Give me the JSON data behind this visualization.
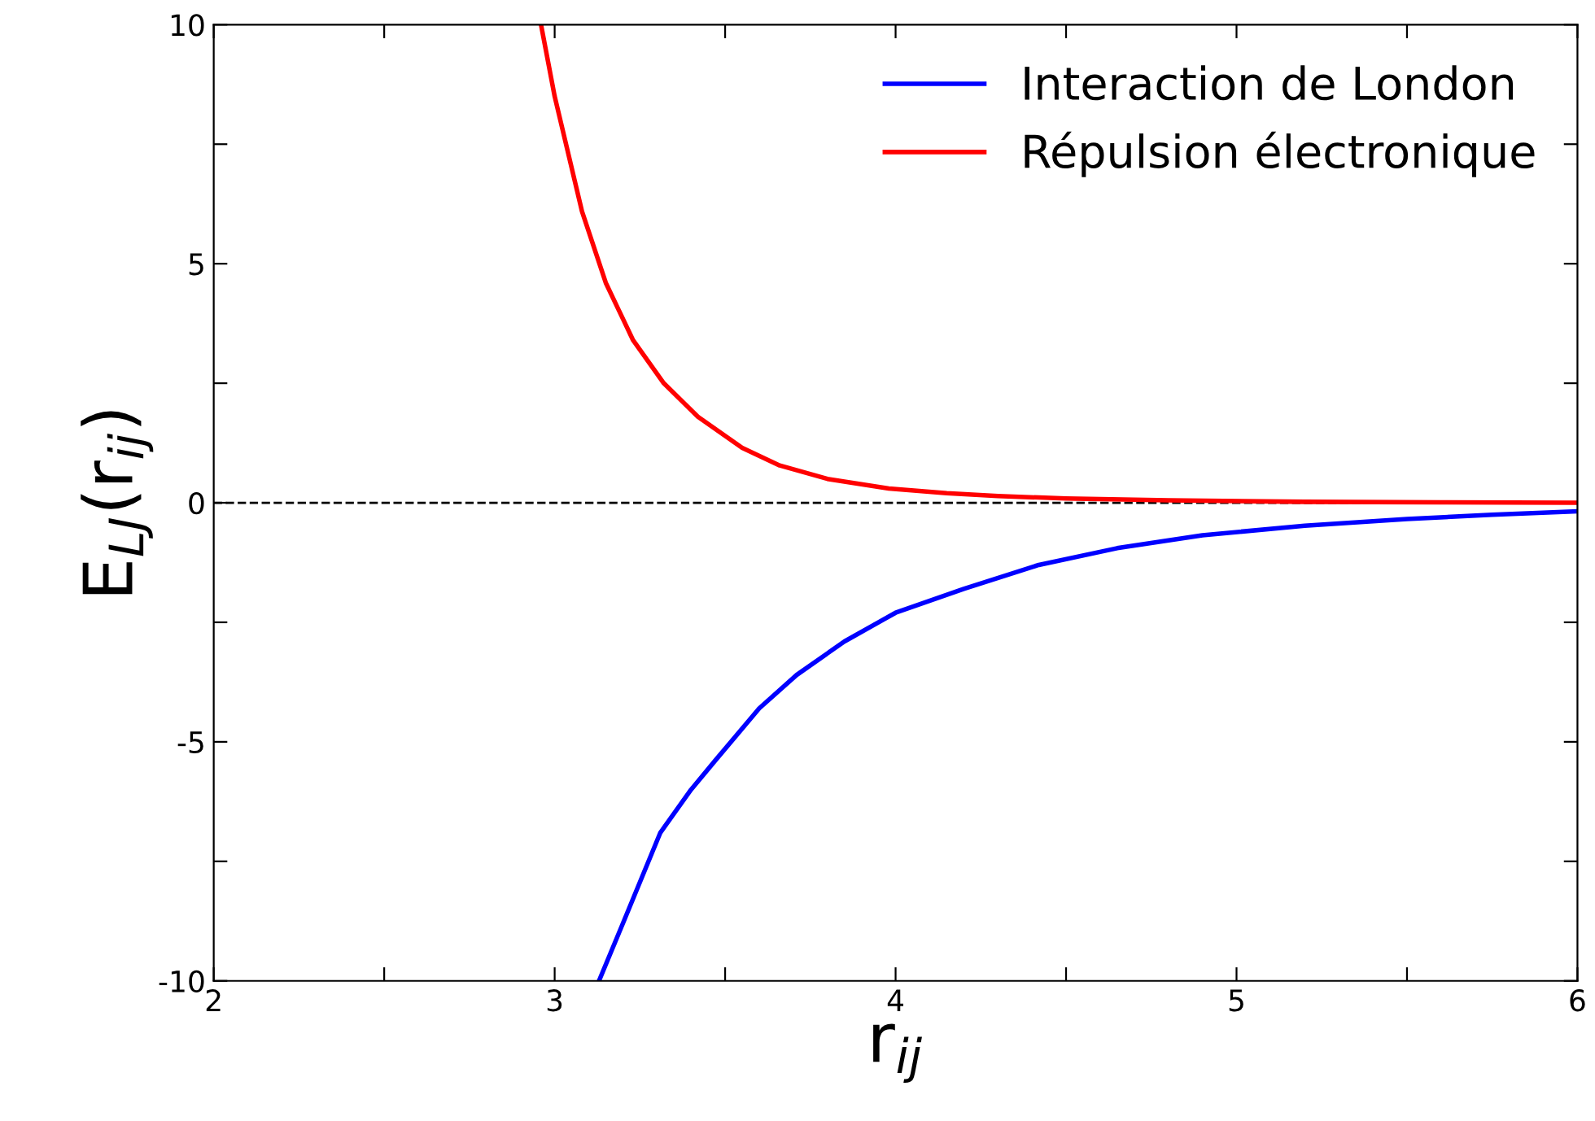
{
  "chart_data": {
    "type": "line",
    "xlabel": "r$_{ij}$",
    "ylabel": "E$_{LJ}$(r$_{ij}$)",
    "xlim": [
      2,
      6
    ],
    "ylim": [
      -10,
      10
    ],
    "xticks": [
      2,
      {
        "value": 2.5,
        "label": null
      },
      3,
      {
        "value": 3.5,
        "label": null
      },
      4,
      {
        "value": 4.5,
        "label": null
      },
      5,
      {
        "value": 5.5,
        "label": null
      },
      6
    ],
    "yticks": [
      -10,
      {
        "value": -7.5,
        "label": null
      },
      -5,
      {
        "value": -2.5,
        "label": null
      },
      0,
      {
        "value": 2.5,
        "label": null
      },
      5,
      {
        "value": 7.5,
        "label": null
      },
      10
    ],
    "grid": false,
    "legend": "top right",
    "marker": "none",
    "line_style": "solid",
    "ref_lines": [
      {
        "axis": "y",
        "value": 0,
        "color": "#000000",
        "line_style": "dashed"
      }
    ],
    "series": [
      {
        "name": "Interaction de London",
        "color": "#0000ff",
        "x": [
          3.13,
          3.2,
          3.31,
          3.4,
          3.47,
          3.6,
          3.71,
          3.85,
          4.0,
          4.2,
          4.42,
          4.65,
          4.9,
          5.2,
          5.5,
          5.75,
          6.0
        ],
        "values": [
          -10,
          -8.8,
          -6.9,
          -6.0,
          -5.4,
          -4.3,
          -3.6,
          -2.9,
          -2.3,
          -1.8,
          -1.3,
          -0.95,
          -0.68,
          -0.48,
          -0.34,
          -0.25,
          -0.18
        ]
      },
      {
        "name": "Répulsion électronique",
        "color": "#ff0000",
        "x": [
          2.96,
          3.0,
          3.08,
          3.15,
          3.23,
          3.32,
          3.42,
          3.55,
          3.66,
          3.8,
          3.98,
          4.15,
          4.3,
          4.5,
          4.8,
          5.2,
          5.6,
          6.0
        ],
        "values": [
          10,
          8.5,
          6.1,
          4.6,
          3.4,
          2.5,
          1.8,
          1.15,
          0.78,
          0.5,
          0.3,
          0.2,
          0.14,
          0.09,
          0.05,
          0.02,
          0.01,
          0.0
        ]
      }
    ]
  }
}
